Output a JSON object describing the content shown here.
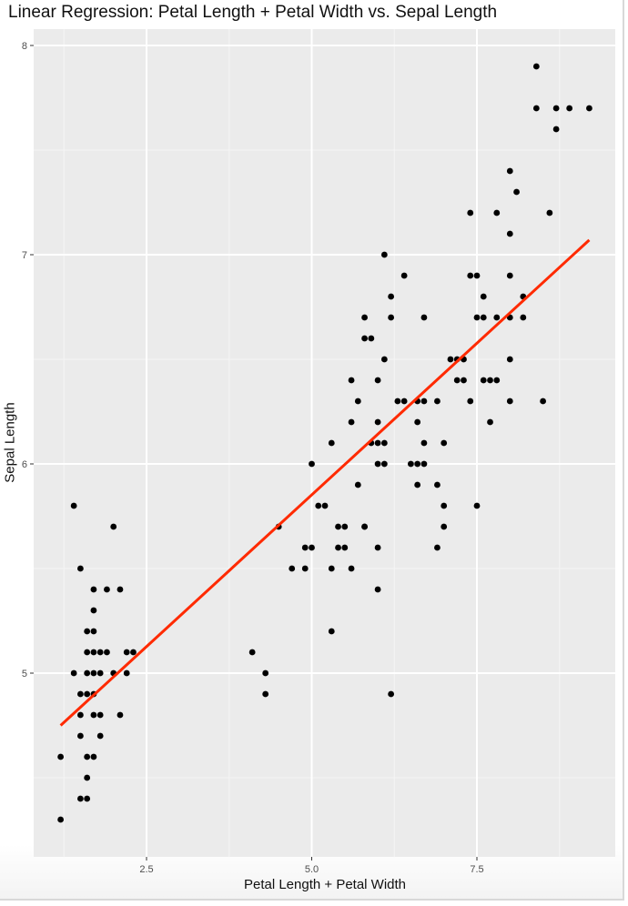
{
  "chart_data": {
    "type": "scatter",
    "title": "Linear Regression: Petal Length + Petal Width vs. Sepal Length",
    "xlabel": "Petal Length + Petal Width",
    "ylabel": "Sepal Length",
    "xlim": [
      0.85,
      9.6
    ],
    "ylim": [
      4.2,
      8.08
    ],
    "x_ticks": [
      2.5,
      5.0,
      7.5
    ],
    "x_tick_labels": [
      "2.5",
      "5.0",
      "7.5"
    ],
    "y_ticks": [
      5,
      6,
      7,
      8
    ],
    "y_tick_labels": [
      "5",
      "6",
      "7",
      "8"
    ],
    "grid": true,
    "legend": "none",
    "point_color": "#000000",
    "line_color": "#ff2a00",
    "regression_line": {
      "x": [
        1.2,
        9.2
      ],
      "y": [
        4.75,
        7.07
      ]
    },
    "points": [
      [
        1.4,
        5.8
      ],
      [
        2.0,
        5.7
      ],
      [
        1.5,
        5.5
      ],
      [
        1.7,
        5.4
      ],
      [
        1.9,
        5.4
      ],
      [
        2.1,
        5.4
      ],
      [
        1.7,
        5.3
      ],
      [
        1.6,
        5.2
      ],
      [
        1.7,
        5.2
      ],
      [
        1.6,
        5.1
      ],
      [
        1.7,
        5.1
      ],
      [
        1.8,
        5.1
      ],
      [
        1.9,
        5.1
      ],
      [
        2.2,
        5.1
      ],
      [
        2.3,
        5.1
      ],
      [
        1.4,
        5.0
      ],
      [
        1.6,
        5.0
      ],
      [
        1.7,
        5.0
      ],
      [
        1.8,
        5.0
      ],
      [
        2.0,
        5.0
      ],
      [
        2.2,
        5.0
      ],
      [
        1.5,
        4.9
      ],
      [
        1.6,
        4.9
      ],
      [
        1.7,
        4.9
      ],
      [
        1.5,
        4.8
      ],
      [
        1.7,
        4.8
      ],
      [
        1.8,
        4.8
      ],
      [
        2.1,
        4.8
      ],
      [
        1.5,
        4.7
      ],
      [
        1.8,
        4.7
      ],
      [
        1.2,
        4.6
      ],
      [
        1.6,
        4.6
      ],
      [
        1.7,
        4.6
      ],
      [
        1.6,
        4.5
      ],
      [
        1.5,
        4.4
      ],
      [
        1.6,
        4.4
      ],
      [
        1.2,
        4.3
      ],
      [
        4.5,
        5.7
      ],
      [
        5.4,
        5.7
      ],
      [
        5.5,
        5.7
      ],
      [
        5.8,
        5.7
      ],
      [
        4.9,
        5.6
      ],
      [
        5.0,
        5.6
      ],
      [
        5.4,
        5.6
      ],
      [
        5.5,
        5.6
      ],
      [
        6.0,
        5.6
      ],
      [
        4.7,
        5.5
      ],
      [
        4.9,
        5.5
      ],
      [
        5.3,
        5.5
      ],
      [
        5.6,
        5.5
      ],
      [
        6.0,
        5.4
      ],
      [
        5.3,
        5.2
      ],
      [
        4.1,
        5.1
      ],
      [
        4.3,
        5.0
      ],
      [
        4.3,
        4.9
      ],
      [
        6.2,
        4.9
      ],
      [
        5.1,
        5.8
      ],
      [
        5.2,
        5.8
      ],
      [
        5.7,
        5.9
      ],
      [
        6.6,
        5.9
      ],
      [
        6.9,
        5.9
      ],
      [
        5.0,
        6.0
      ],
      [
        6.0,
        6.0
      ],
      [
        6.1,
        6.0
      ],
      [
        6.5,
        6.0
      ],
      [
        6.6,
        6.0
      ],
      [
        6.7,
        6.0
      ],
      [
        5.3,
        6.1
      ],
      [
        5.9,
        6.1
      ],
      [
        6.0,
        6.1
      ],
      [
        6.1,
        6.1
      ],
      [
        6.7,
        6.1
      ],
      [
        7.0,
        6.1
      ],
      [
        5.6,
        6.2
      ],
      [
        6.0,
        6.2
      ],
      [
        6.6,
        6.2
      ],
      [
        7.7,
        6.2
      ],
      [
        5.7,
        6.3
      ],
      [
        6.3,
        6.3
      ],
      [
        6.4,
        6.3
      ],
      [
        6.6,
        6.3
      ],
      [
        6.7,
        6.3
      ],
      [
        6.9,
        6.3
      ],
      [
        7.4,
        6.3
      ],
      [
        8.0,
        6.3
      ],
      [
        8.5,
        6.3
      ],
      [
        5.6,
        6.4
      ],
      [
        6.0,
        6.4
      ],
      [
        7.2,
        6.4
      ],
      [
        7.3,
        6.4
      ],
      [
        7.6,
        6.4
      ],
      [
        7.7,
        6.4
      ],
      [
        7.8,
        6.4
      ],
      [
        6.1,
        6.5
      ],
      [
        7.1,
        6.5
      ],
      [
        7.2,
        6.5
      ],
      [
        7.3,
        6.5
      ],
      [
        8.0,
        6.5
      ],
      [
        5.8,
        6.6
      ],
      [
        5.9,
        6.6
      ],
      [
        5.8,
        6.7
      ],
      [
        6.2,
        6.7
      ],
      [
        6.7,
        6.7
      ],
      [
        7.5,
        6.7
      ],
      [
        7.6,
        6.7
      ],
      [
        7.8,
        6.7
      ],
      [
        8.0,
        6.7
      ],
      [
        8.2,
        6.7
      ],
      [
        6.2,
        6.8
      ],
      [
        7.6,
        6.8
      ],
      [
        8.2,
        6.8
      ],
      [
        6.4,
        6.9
      ],
      [
        7.4,
        6.9
      ],
      [
        7.5,
        6.9
      ],
      [
        8.0,
        6.9
      ],
      [
        6.1,
        7.0
      ],
      [
        8.0,
        7.1
      ],
      [
        7.4,
        7.2
      ],
      [
        7.8,
        7.2
      ],
      [
        8.6,
        7.2
      ],
      [
        8.1,
        7.3
      ],
      [
        8.0,
        7.4
      ],
      [
        8.7,
        7.6
      ],
      [
        8.4,
        7.7
      ],
      [
        8.7,
        7.7
      ],
      [
        8.9,
        7.7
      ],
      [
        9.2,
        7.7
      ],
      [
        8.4,
        7.9
      ],
      [
        5.8,
        5.7
      ],
      [
        7.0,
        5.8
      ],
      [
        7.5,
        5.8
      ],
      [
        7.0,
        5.7
      ],
      [
        6.9,
        5.6
      ]
    ]
  },
  "labels": {
    "title": "Linear Regression: Petal Length + Petal Width vs. Sepal Length",
    "xlabel": "Petal Length + Petal Width",
    "ylabel": "Sepal Length"
  }
}
